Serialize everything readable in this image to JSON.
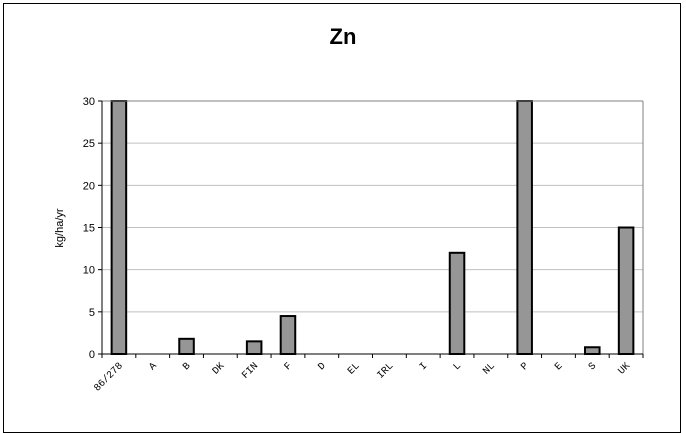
{
  "chart_data": {
    "type": "bar",
    "title": "Zn",
    "xlabel": "",
    "ylabel": "kg/ha/yr",
    "categories": [
      "86/278",
      "A",
      "B",
      "DK",
      "FIN",
      "F",
      "D",
      "EL",
      "IRL",
      "I",
      "L",
      "NL",
      "P",
      "E",
      "S",
      "UK"
    ],
    "values": [
      30,
      0,
      1.8,
      0,
      1.5,
      4.5,
      0,
      0,
      0,
      0,
      12,
      0,
      30,
      0,
      0.8,
      15
    ],
    "ylim": [
      0,
      30
    ],
    "yticks": [
      0,
      5,
      10,
      15,
      20,
      25,
      30
    ],
    "grid": true,
    "legend": "none",
    "colors": {
      "bar_fill": "#969696",
      "bar_stroke": "#000000",
      "grid": "#c0c0c0",
      "axis": "#808080"
    }
  }
}
